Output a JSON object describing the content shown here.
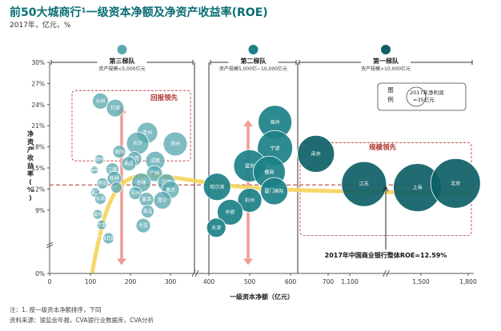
{
  "title": "前50大城商行¹一级资本净额及净资产收益率(ROE)",
  "subtitle": "2017年，亿元，%",
  "notes": [
    "注：1. 按一级资本净额排序，下同",
    "资料来源：银监会年报，CVA银行业数据库，CVA分析"
  ],
  "chart_data": {
    "type": "scatter",
    "title": "前50大城商行¹一级资本净额及净资产收益率(ROE)",
    "xlabel": "一级资本净额（亿元）",
    "ylabel": "净资产收益率(%)",
    "x_ticks": [
      "0",
      "100",
      "200",
      "300",
      "400",
      "500",
      "600",
      "700",
      "1,100",
      "1,500",
      "1,800"
    ],
    "y_ticks": [
      "0%",
      "9%",
      "12%",
      "15%",
      "18%",
      "21%",
      "24%",
      "27%",
      "30%"
    ],
    "ylim": [
      0,
      30
    ],
    "tiers": [
      {
        "title": "第三梯队",
        "subtitle": "资产规模<5,000亿元"
      },
      {
        "title": "第二梯队",
        "subtitle": "资产规模5,000亿~10,000亿元"
      },
      {
        "title": "第一梯队",
        "subtitle": "资产规模>10,000亿元"
      }
    ],
    "legend": {
      "title": "图例",
      "text": "2017年净利润=35亿元"
    },
    "callouts": {
      "return_lead": "回报领先",
      "scale_lead": "规模领先"
    },
    "reference_line": {
      "label": "2017年中国商业银行整体ROE=12.59%",
      "value": 12.59
    },
    "colors": {
      "tier3": "#5aa9b0",
      "tier2": "#1c8088",
      "tier1": "#0e5f66",
      "trend": "#f5d35a",
      "arrow": "#f29b95",
      "refline": "#b0332c"
    },
    "points": [
      {
        "name": "台州",
        "x": 125,
        "y": 24.5,
        "size": 20
      },
      {
        "name": "甘肃",
        "x": 162,
        "y": 23.5,
        "size": 22
      },
      {
        "name": "贵州",
        "x": 242,
        "y": 20.0,
        "size": 26
      },
      {
        "name": "长沙",
        "x": 218,
        "y": 18.5,
        "size": 28
      },
      {
        "name": "郑州",
        "x": 310,
        "y": 18.4,
        "size": 30
      },
      {
        "name": "洛阳",
        "x": 172,
        "y": 17.3,
        "size": 16
      },
      {
        "name": "成都",
        "x": 262,
        "y": 16.0,
        "size": 24
      },
      {
        "name": "东莞",
        "x": 210,
        "y": 16.3,
        "size": 18
      },
      {
        "name": "柳州",
        "x": 122,
        "y": 16.2,
        "size": 12
      },
      {
        "name": "南昌",
        "x": 196,
        "y": 15.6,
        "size": 18
      },
      {
        "name": "威海商业",
        "x": 110,
        "y": 14.7,
        "size": 10
      },
      {
        "name": "三峡",
        "x": 155,
        "y": 14.8,
        "size": 16
      },
      {
        "name": "广州",
        "x": 260,
        "y": 14.2,
        "size": 20
      },
      {
        "name": "桂林",
        "x": 160,
        "y": 13.5,
        "size": 18
      },
      {
        "name": "吉林",
        "x": 227,
        "y": 12.9,
        "size": 24
      },
      {
        "name": "西安",
        "x": 130,
        "y": 12.8,
        "size": 14
      },
      {
        "name": "江西",
        "x": 290,
        "y": 12.9,
        "size": 22
      },
      {
        "name": "重庆",
        "x": 300,
        "y": 11.9,
        "size": 22
      },
      {
        "name": "天津2",
        "x": 165,
        "y": 12.2,
        "size": 14
      },
      {
        "name": "厦门",
        "x": 112,
        "y": 11.5,
        "size": 12
      },
      {
        "name": "广东南粤",
        "x": 125,
        "y": 10.6,
        "size": 14
      },
      {
        "name": "苏州",
        "x": 212,
        "y": 11.4,
        "size": 16
      },
      {
        "name": "富滇",
        "x": 240,
        "y": 10.5,
        "size": 18
      },
      {
        "name": "昆仑",
        "x": 280,
        "y": 10.4,
        "size": 22
      },
      {
        "name": "青岛",
        "x": 243,
        "y": 8.8,
        "size": 16
      },
      {
        "name": "温州",
        "x": 118,
        "y": 8.4,
        "size": 12
      },
      {
        "name": "宁夏",
        "x": 128,
        "y": 6.9,
        "size": 12
      },
      {
        "name": "大连",
        "x": 232,
        "y": 6.8,
        "size": 18
      },
      {
        "name": "广西北部湾",
        "x": 145,
        "y": 5.0,
        "size": 14
      },
      {
        "name": "锦州",
        "x": 562,
        "y": 21.5,
        "size": 42
      },
      {
        "name": "宁波",
        "x": 562,
        "y": 17.8,
        "size": 44
      },
      {
        "name": "盛京",
        "x": 500,
        "y": 15.3,
        "size": 40
      },
      {
        "name": "徽商",
        "x": 548,
        "y": 14.4,
        "size": 40
      },
      {
        "name": "哈尔滨",
        "x": 420,
        "y": 12.3,
        "size": 34
      },
      {
        "name": "厦门国际",
        "x": 560,
        "y": 11.7,
        "size": 34
      },
      {
        "name": "杭州",
        "x": 500,
        "y": 10.4,
        "size": 30
      },
      {
        "name": "中原",
        "x": 452,
        "y": 8.7,
        "size": 32
      },
      {
        "name": "天津",
        "x": 418,
        "y": 6.5,
        "size": 24
      },
      {
        "name": "南京",
        "x": 668,
        "y": 17.0,
        "size": 46
      },
      {
        "name": "江苏",
        "x": 1180,
        "y": 12.7,
        "size": 56
      },
      {
        "name": "上海",
        "x": 1480,
        "y": 12.2,
        "size": 60
      },
      {
        "name": "北京",
        "x": 1720,
        "y": 12.8,
        "size": 62
      }
    ]
  }
}
